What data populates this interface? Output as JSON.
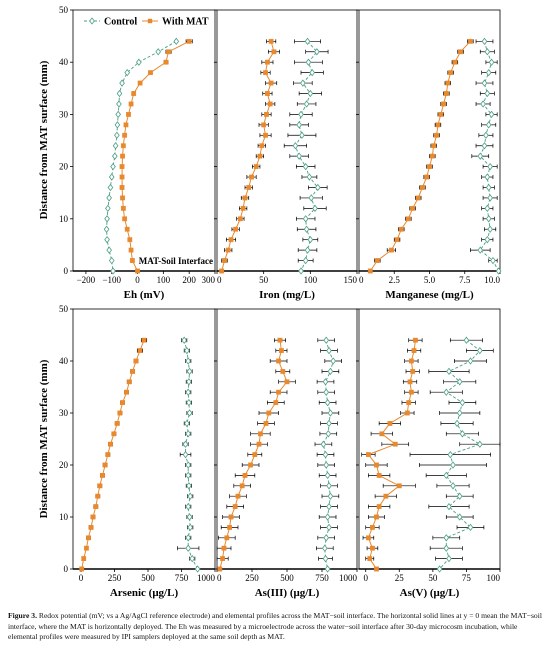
{
  "figure": {
    "caption_label": "Figure 3.",
    "caption_text": "Redox potential (mV; vs a Ag/AgCl reference electrode) and elemental profiles across the MAT−soil interface. The horizontal solid lines at y = 0 mean the MAT−soil interface, where the MAT is horizontally deployed. The Eh was measured by a microelectrode across the water−soil interface after 30-day microcosm incubation, while elemental profiles were measured by IPI samplers deployed at the same soil depth as MAT.",
    "ylabel": "Distance from MAT surface (mm)",
    "legend": {
      "control": "Control",
      "mat": "With MAT"
    },
    "interface_label": "MAT-Soil Interface",
    "colors": {
      "control": "#4a9d86",
      "mat": "#e8892e",
      "axis": "#000000",
      "errorbar": "#000000"
    }
  },
  "chart_data": [
    {
      "type": "line",
      "panel": "Eh",
      "xlabel": "Eh (mV)",
      "xlim": [
        -250,
        300
      ],
      "ylim": [
        0,
        50
      ],
      "xticks": [
        -200,
        -100,
        0,
        100,
        200,
        300
      ],
      "xtick_labels": [
        "−200",
        "−100",
        "0",
        "100",
        "200",
        "300"
      ],
      "yticks": [
        0,
        10,
        20,
        30,
        40,
        50
      ],
      "ytick_labels": [
        "0",
        "10",
        "20",
        "30",
        "40",
        "50"
      ],
      "series": [
        {
          "name": "Control",
          "y": [
            44,
            42,
            40,
            38,
            36,
            34,
            32,
            30,
            28,
            26,
            24,
            22,
            20,
            18,
            16,
            14,
            12,
            10,
            8,
            6,
            4,
            2,
            0
          ],
          "x": [
            150,
            80,
            5,
            -40,
            -60,
            -70,
            -72,
            -75,
            -78,
            -80,
            -85,
            -88,
            -95,
            -100,
            -105,
            -110,
            -115,
            -118,
            -120,
            -118,
            -110,
            -100,
            -95
          ],
          "err": [
            0,
            0,
            0,
            0,
            0,
            0,
            0,
            0,
            0,
            0,
            0,
            0,
            0,
            0,
            0,
            0,
            0,
            0,
            0,
            0,
            0,
            0,
            0
          ]
        },
        {
          "name": "With MAT",
          "y": [
            44,
            42,
            40,
            38,
            36,
            34,
            32,
            30,
            28,
            26,
            24,
            22,
            20,
            18,
            16,
            14,
            12,
            10,
            8,
            6,
            4,
            2,
            0
          ],
          "x": [
            200,
            120,
            110,
            50,
            10,
            -15,
            -25,
            -35,
            -45,
            -50,
            -55,
            -58,
            -60,
            -60,
            -60,
            -58,
            -55,
            -50,
            -40,
            -30,
            -25,
            -20,
            0
          ],
          "err": [
            12,
            10,
            8,
            0,
            0,
            0,
            0,
            0,
            0,
            0,
            0,
            0,
            0,
            0,
            0,
            0,
            0,
            0,
            0,
            0,
            0,
            0,
            0
          ]
        }
      ]
    },
    {
      "type": "line",
      "panel": "Iron",
      "xlabel": "Iron (mg/L)",
      "xlim": [
        0,
        150
      ],
      "ylim": [
        0,
        50
      ],
      "xticks": [
        0,
        50,
        100,
        150
      ],
      "xtick_labels": [
        "0",
        "50",
        "100",
        "150"
      ],
      "yticks": [
        0,
        10,
        20,
        30,
        40,
        50
      ],
      "ytick_labels": [
        "0",
        "10",
        "20",
        "30",
        "40",
        "50"
      ],
      "series": [
        {
          "name": "Control",
          "y": [
            44,
            42,
            40,
            38,
            36,
            34,
            32,
            30,
            28,
            26,
            24,
            22,
            20,
            18,
            16,
            14,
            12,
            10,
            8,
            6,
            4,
            2,
            0
          ],
          "x": [
            97,
            107,
            98,
            102,
            92,
            100,
            96,
            90,
            88,
            91,
            84,
            88,
            95,
            99,
            108,
            101,
            105,
            95,
            96,
            100,
            97,
            95,
            90
          ],
          "err": [
            14,
            12,
            15,
            12,
            10,
            12,
            10,
            12,
            10,
            15,
            12,
            10,
            10,
            8,
            10,
            12,
            12,
            10,
            10,
            8,
            10,
            8,
            0
          ]
        },
        {
          "name": "With MAT",
          "y": [
            44,
            42,
            40,
            38,
            36,
            34,
            32,
            30,
            28,
            26,
            24,
            22,
            20,
            18,
            16,
            14,
            12,
            10,
            8,
            6,
            4,
            2,
            0
          ],
          "x": [
            58,
            61,
            54,
            52,
            58,
            54,
            57,
            53,
            50,
            52,
            48,
            46,
            42,
            37,
            34,
            30,
            28,
            25,
            20,
            15,
            12,
            8,
            5
          ],
          "err": [
            5,
            6,
            6,
            5,
            6,
            5,
            5,
            5,
            5,
            6,
            4,
            4,
            4,
            5,
            4,
            4,
            4,
            4,
            4,
            5,
            4,
            3,
            0
          ]
        }
      ]
    },
    {
      "type": "line",
      "panel": "Manganese",
      "xlabel": "Manganese (mg/L)",
      "xlim": [
        0,
        10
      ],
      "ylim": [
        0,
        50
      ],
      "xticks": [
        0,
        2.5,
        5,
        7.5,
        10
      ],
      "xtick_labels": [
        "0",
        "2.5",
        "5.0",
        "7.5",
        "10.0"
      ],
      "yticks": [
        0,
        10,
        20,
        30,
        40,
        50
      ],
      "ytick_labels": [
        "0",
        "10",
        "20",
        "30",
        "40",
        "50"
      ],
      "series": [
        {
          "name": "Control",
          "y": [
            44,
            42,
            40,
            38,
            36,
            34,
            32,
            30,
            28,
            26,
            24,
            22,
            20,
            18,
            16,
            14,
            12,
            10,
            8,
            6,
            4,
            2,
            0
          ],
          "x": [
            8.9,
            9.1,
            9.4,
            9.2,
            8.9,
            9.1,
            8.8,
            9.4,
            9.2,
            9.0,
            8.9,
            8.6,
            9.3,
            9.1,
            9.2,
            9.3,
            9.1,
            9.2,
            9.3,
            9.1,
            8.6,
            9.5,
            9.9
          ],
          "err": [
            0.6,
            0.5,
            0.4,
            0.5,
            0.6,
            0.5,
            0.5,
            0.4,
            0.5,
            0.5,
            0.6,
            0.6,
            0.5,
            0.4,
            0.4,
            0.5,
            0.4,
            0.4,
            0.4,
            0.4,
            0.7,
            0.3,
            0
          ]
        },
        {
          "name": "With MAT",
          "y": [
            44,
            42,
            40,
            38,
            36,
            34,
            32,
            30,
            28,
            26,
            24,
            22,
            20,
            18,
            16,
            14,
            12,
            10,
            8,
            6,
            4,
            2,
            0
          ],
          "x": [
            7.9,
            7.2,
            6.8,
            6.5,
            6.3,
            6.2,
            6.0,
            5.8,
            5.6,
            5.5,
            5.3,
            5.2,
            5.0,
            4.8,
            4.5,
            4.2,
            3.8,
            3.5,
            3.0,
            2.7,
            2.3,
            1.3,
            0.8
          ],
          "err": [
            0.2,
            0.2,
            0.2,
            0.2,
            0.2,
            0.2,
            0.2,
            0.2,
            0.2,
            0.2,
            0.2,
            0.2,
            0.2,
            0.2,
            0.2,
            0.2,
            0.2,
            0.2,
            0.2,
            0.2,
            0.3,
            0.2,
            0
          ]
        }
      ]
    },
    {
      "type": "line",
      "panel": "Arsenic",
      "xlabel": "Arsenic (μg/L)",
      "xlim": [
        -60,
        1000
      ],
      "ylim": [
        0,
        50
      ],
      "xticks": [
        0,
        250,
        500,
        750,
        1000
      ],
      "xtick_labels": [
        "0",
        "250",
        "500",
        "750",
        "1000"
      ],
      "yticks": [
        0,
        10,
        20,
        30,
        40,
        50
      ],
      "ytick_labels": [
        "0",
        "10",
        "20",
        "30",
        "40",
        "50"
      ],
      "series": [
        {
          "name": "Control",
          "y": [
            44,
            42,
            40,
            38,
            36,
            34,
            32,
            30,
            28,
            26,
            24,
            22,
            20,
            18,
            16,
            14,
            12,
            10,
            8,
            6,
            4,
            2,
            0
          ],
          "x": [
            770,
            790,
            800,
            810,
            805,
            800,
            805,
            810,
            790,
            800,
            780,
            780,
            800,
            800,
            805,
            815,
            800,
            810,
            815,
            800,
            800,
            830,
            870
          ],
          "err": [
            20,
            20,
            20,
            20,
            20,
            20,
            20,
            20,
            20,
            20,
            20,
            40,
            20,
            20,
            20,
            20,
            20,
            20,
            20,
            20,
            80,
            20,
            0
          ]
        },
        {
          "name": "With MAT",
          "y": [
            44,
            42,
            40,
            38,
            36,
            34,
            32,
            30,
            28,
            26,
            24,
            22,
            20,
            18,
            16,
            14,
            12,
            10,
            8,
            6,
            4,
            2,
            0
          ],
          "x": [
            470,
            440,
            410,
            385,
            360,
            340,
            310,
            290,
            270,
            245,
            220,
            200,
            180,
            160,
            140,
            125,
            110,
            90,
            75,
            55,
            40,
            20,
            5
          ],
          "err": [
            20,
            20,
            15,
            15,
            15,
            15,
            15,
            15,
            15,
            15,
            15,
            15,
            15,
            15,
            15,
            15,
            15,
            15,
            15,
            15,
            10,
            10,
            0
          ]
        }
      ]
    },
    {
      "type": "line",
      "panel": "As(III)",
      "xlabel": "As(III) (μg/L)",
      "xlim": [
        0,
        1000
      ],
      "ylim": [
        0,
        50
      ],
      "xticks": [
        0,
        250,
        500,
        750,
        1000
      ],
      "xtick_labels": [
        "0",
        "250",
        "500",
        "750",
        "1000"
      ],
      "yticks": [
        0,
        10,
        20,
        30,
        40,
        50
      ],
      "ytick_labels": [
        "0",
        "10",
        "20",
        "30",
        "40",
        "50"
      ],
      "series": [
        {
          "name": "Control",
          "y": [
            44,
            42,
            40,
            38,
            36,
            34,
            32,
            30,
            28,
            26,
            24,
            22,
            20,
            18,
            16,
            14,
            12,
            10,
            8,
            6,
            4,
            2,
            0
          ],
          "x": [
            780,
            800,
            830,
            810,
            775,
            780,
            790,
            810,
            800,
            795,
            760,
            775,
            780,
            790,
            800,
            810,
            800,
            790,
            800,
            780,
            770,
            775,
            790
          ],
          "err": [
            60,
            60,
            60,
            60,
            60,
            60,
            60,
            60,
            60,
            60,
            60,
            60,
            60,
            60,
            60,
            60,
            60,
            60,
            60,
            60,
            60,
            50,
            0
          ]
        },
        {
          "name": "With MAT",
          "y": [
            44,
            42,
            40,
            38,
            36,
            34,
            32,
            30,
            28,
            26,
            24,
            22,
            20,
            18,
            16,
            14,
            12,
            10,
            8,
            6,
            4,
            2,
            0
          ],
          "x": [
            450,
            460,
            440,
            470,
            500,
            440,
            420,
            370,
            350,
            310,
            300,
            270,
            240,
            200,
            180,
            150,
            130,
            100,
            90,
            70,
            50,
            40,
            20
          ],
          "err": [
            40,
            40,
            60,
            50,
            60,
            60,
            60,
            70,
            60,
            70,
            60,
            50,
            60,
            70,
            60,
            60,
            60,
            60,
            60,
            60,
            50,
            40,
            0
          ]
        }
      ]
    },
    {
      "type": "line",
      "panel": "As(V)",
      "xlabel": "As(V) (μg/L)",
      "xlim": [
        -5,
        100
      ],
      "ylim": [
        0,
        50
      ],
      "xticks": [
        0,
        25,
        50,
        75,
        100
      ],
      "xtick_labels": [
        "0",
        "25",
        "50",
        "75",
        "100"
      ],
      "yticks": [
        0,
        10,
        20,
        30,
        40,
        50
      ],
      "ytick_labels": [
        "0",
        "10",
        "20",
        "30",
        "40",
        "50"
      ],
      "series": [
        {
          "name": "Control",
          "y": [
            44,
            42,
            40,
            38,
            36,
            34,
            32,
            30,
            28,
            26,
            24,
            22,
            20,
            18,
            16,
            14,
            12,
            10,
            8,
            6,
            4,
            2,
            0
          ],
          "x": [
            75,
            85,
            78,
            62,
            70,
            60,
            72,
            70,
            68,
            72,
            85,
            63,
            65,
            60,
            65,
            70,
            62,
            70,
            78,
            60,
            60,
            62,
            55
          ],
          "err": [
            12,
            10,
            12,
            15,
            12,
            12,
            10,
            15,
            12,
            12,
            15,
            30,
            25,
            15,
            12,
            10,
            15,
            10,
            10,
            10,
            12,
            10,
            0
          ]
        },
        {
          "name": "With MAT",
          "y": [
            44,
            42,
            40,
            38,
            36,
            34,
            32,
            30,
            28,
            26,
            24,
            22,
            20,
            18,
            16,
            14,
            12,
            10,
            8,
            6,
            4,
            2,
            0
          ],
          "x": [
            37,
            36,
            34,
            35,
            33,
            34,
            32,
            31,
            18,
            12,
            22,
            2,
            8,
            10,
            25,
            15,
            10,
            8,
            5,
            2,
            5,
            3,
            8
          ],
          "err": [
            5,
            5,
            5,
            5,
            5,
            5,
            5,
            5,
            8,
            8,
            10,
            5,
            8,
            8,
            12,
            8,
            8,
            6,
            5,
            4,
            4,
            3,
            0
          ]
        }
      ]
    }
  ]
}
